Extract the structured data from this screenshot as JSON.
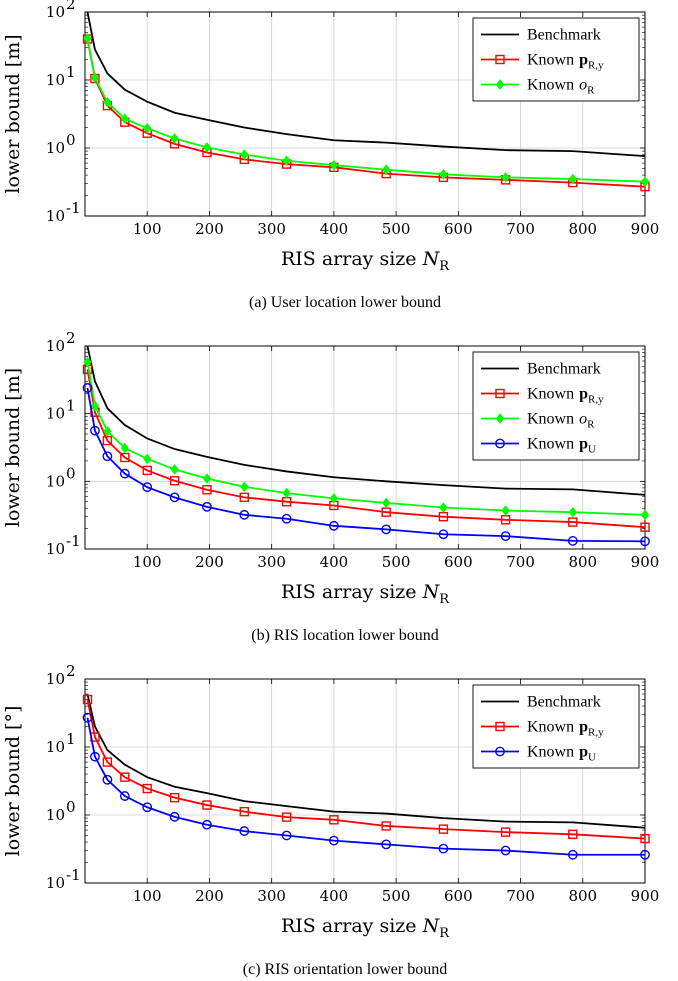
{
  "chart_data": [
    {
      "type": "line",
      "caption": "(a) User location lower bound",
      "xlabel": "RIS array size",
      "xlabel_sym": "N",
      "xlabel_sub": "R",
      "ylabel": "lower bound [m]",
      "yscale": "log",
      "xlim": [
        0,
        900
      ],
      "ylim": [
        0.1,
        100
      ],
      "grid": true,
      "legend_position": "top-right",
      "series": [
        {
          "name": "Benchmark",
          "color": "#000000",
          "marker": "none",
          "x": [
            4,
            16,
            36,
            64,
            100,
            144,
            196,
            256,
            324,
            400,
            484,
            576,
            676,
            784,
            900
          ],
          "y": [
            100,
            28,
            12.5,
            7.2,
            4.8,
            3.3,
            2.6,
            2.0,
            1.6,
            1.3,
            1.2,
            1.05,
            0.93,
            0.9,
            0.76
          ]
        },
        {
          "name": "Known",
          "name_sym": "p",
          "name_sub": "R,y",
          "color": "#ff0000",
          "marker": "square",
          "x": [
            4,
            16,
            36,
            64,
            100,
            144,
            196,
            256,
            324,
            400,
            484,
            576,
            676,
            784,
            900
          ],
          "y": [
            40,
            10.5,
            4.2,
            2.4,
            1.65,
            1.15,
            0.86,
            0.68,
            0.58,
            0.52,
            0.42,
            0.37,
            0.34,
            0.31,
            0.27
          ]
        },
        {
          "name": "Known",
          "name_sym": "o",
          "name_sub": "R",
          "color": "#00ff00",
          "marker": "diamond",
          "x": [
            4,
            16,
            36,
            64,
            100,
            144,
            196,
            256,
            324,
            400,
            484,
            576,
            676,
            784,
            900
          ],
          "y": [
            41,
            10.8,
            4.7,
            2.7,
            1.95,
            1.38,
            1.02,
            0.8,
            0.65,
            0.56,
            0.48,
            0.41,
            0.37,
            0.35,
            0.32
          ]
        }
      ]
    },
    {
      "type": "line",
      "caption": "(b) RIS location lower bound",
      "xlabel": "RIS array size",
      "xlabel_sym": "N",
      "xlabel_sub": "R",
      "ylabel": "lower bound [m]",
      "yscale": "log",
      "xlim": [
        0,
        900
      ],
      "ylim": [
        0.1,
        100
      ],
      "grid": true,
      "legend_position": "top-right",
      "series": [
        {
          "name": "Benchmark",
          "color": "#000000",
          "marker": "none",
          "x": [
            4,
            16,
            36,
            64,
            100,
            144,
            196,
            256,
            324,
            400,
            484,
            576,
            676,
            784,
            900
          ],
          "y": [
            100,
            30,
            12,
            6.8,
            4.3,
            3.0,
            2.3,
            1.75,
            1.4,
            1.15,
            1.0,
            0.88,
            0.78,
            0.76,
            0.63
          ]
        },
        {
          "name": "Known",
          "name_sym": "p",
          "name_sub": "R,y",
          "color": "#ff0000",
          "marker": "square",
          "x": [
            4,
            16,
            36,
            64,
            100,
            144,
            196,
            256,
            324,
            400,
            484,
            576,
            676,
            784,
            900
          ],
          "y": [
            45,
            10.5,
            4.0,
            2.25,
            1.45,
            1.02,
            0.75,
            0.58,
            0.5,
            0.44,
            0.35,
            0.3,
            0.27,
            0.25,
            0.21
          ]
        },
        {
          "name": "Known",
          "name_sym": "o",
          "name_sub": "R",
          "color": "#00ff00",
          "marker": "diamond",
          "x": [
            4,
            16,
            36,
            64,
            100,
            144,
            196,
            256,
            324,
            400,
            484,
            576,
            676,
            784,
            900
          ],
          "y": [
            58,
            13,
            5.5,
            3.1,
            2.15,
            1.5,
            1.1,
            0.83,
            0.67,
            0.56,
            0.48,
            0.41,
            0.37,
            0.35,
            0.32
          ]
        },
        {
          "name": "Known",
          "name_sym": "p",
          "name_sub": "U",
          "color": "#0000ff",
          "marker": "circle",
          "x": [
            4,
            16,
            36,
            64,
            100,
            144,
            196,
            256,
            324,
            400,
            484,
            576,
            676,
            784,
            900
          ],
          "y": [
            24,
            5.6,
            2.35,
            1.3,
            0.82,
            0.58,
            0.42,
            0.32,
            0.28,
            0.22,
            0.195,
            0.165,
            0.155,
            0.132,
            0.13
          ]
        }
      ]
    },
    {
      "type": "line",
      "caption": "(c) RIS orientation lower bound",
      "xlabel": "RIS array size",
      "xlabel_sym": "N",
      "xlabel_sub": "R",
      "ylabel": "lower bound [°]",
      "yscale": "log",
      "xlim": [
        0,
        900
      ],
      "ylim": [
        0.1,
        100
      ],
      "grid": true,
      "legend_position": "top-right",
      "series": [
        {
          "name": "Benchmark",
          "color": "#000000",
          "marker": "none",
          "x": [
            4,
            16,
            36,
            64,
            100,
            144,
            196,
            256,
            324,
            400,
            484,
            576,
            676,
            784,
            900
          ],
          "y": [
            60,
            20,
            9,
            5.5,
            3.6,
            2.6,
            2.1,
            1.6,
            1.35,
            1.12,
            1.05,
            0.9,
            0.8,
            0.78,
            0.65
          ]
        },
        {
          "name": "Known",
          "name_sym": "p",
          "name_sub": "R,y",
          "color": "#ff0000",
          "marker": "square",
          "x": [
            4,
            16,
            36,
            64,
            100,
            144,
            196,
            256,
            324,
            400,
            484,
            576,
            676,
            784,
            900
          ],
          "y": [
            50,
            14,
            6.0,
            3.6,
            2.45,
            1.8,
            1.4,
            1.12,
            0.93,
            0.85,
            0.69,
            0.62,
            0.56,
            0.52,
            0.45
          ]
        },
        {
          "name": "Known",
          "name_sym": "p",
          "name_sub": "U",
          "color": "#0000ff",
          "marker": "circle",
          "x": [
            4,
            16,
            36,
            64,
            100,
            144,
            196,
            256,
            324,
            400,
            484,
            576,
            676,
            784,
            900
          ],
          "y": [
            27,
            7.2,
            3.3,
            1.9,
            1.3,
            0.94,
            0.72,
            0.58,
            0.5,
            0.42,
            0.37,
            0.32,
            0.3,
            0.26,
            0.26
          ]
        }
      ]
    }
  ]
}
